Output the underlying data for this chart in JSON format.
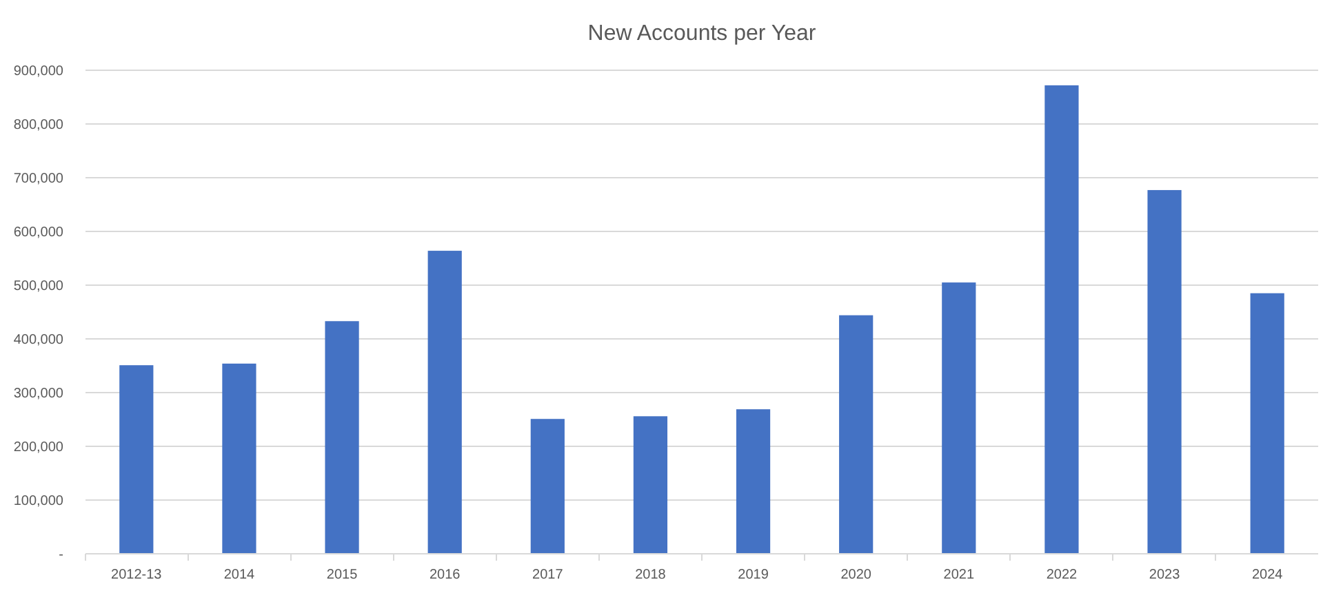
{
  "chart_data": {
    "type": "bar",
    "title": "New Accounts per Year",
    "categories": [
      "2012-13",
      "2014",
      "2015",
      "2016",
      "2017",
      "2018",
      "2019",
      "2020",
      "2021",
      "2022",
      "2023",
      "2024"
    ],
    "values": [
      351000,
      354000,
      433000,
      564000,
      251000,
      256000,
      269000,
      444000,
      505000,
      872000,
      677000,
      485000
    ],
    "color": "#4472c4",
    "ylim": [
      0,
      900000
    ],
    "yticks": [
      {
        "value": 0,
        "label": "-"
      },
      {
        "value": 100000,
        "label": "100,000"
      },
      {
        "value": 200000,
        "label": "200,000"
      },
      {
        "value": 300000,
        "label": "300,000"
      },
      {
        "value": 400000,
        "label": "400,000"
      },
      {
        "value": 500000,
        "label": "500,000"
      },
      {
        "value": 600000,
        "label": "600,000"
      },
      {
        "value": 700000,
        "label": "700,000"
      },
      {
        "value": 800000,
        "label": "800,000"
      },
      {
        "value": 900000,
        "label": "900,000"
      }
    ],
    "grid": true
  }
}
